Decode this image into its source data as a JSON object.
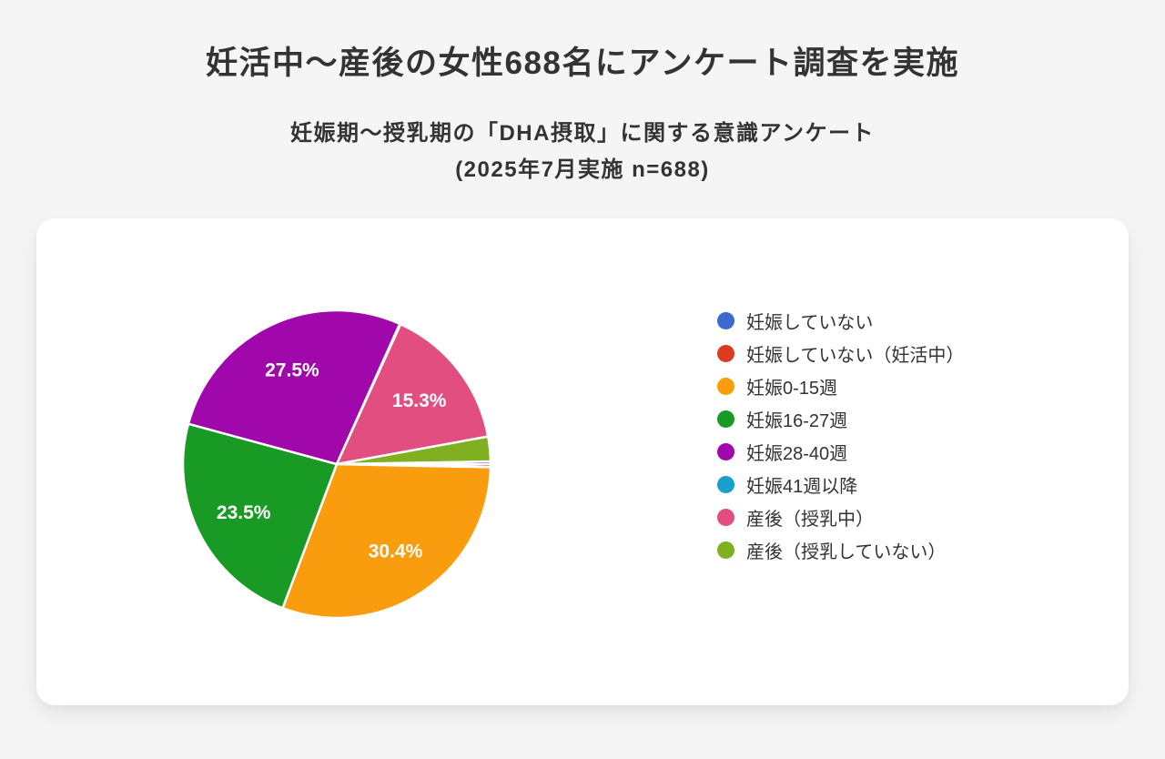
{
  "header": {
    "title": "妊活中〜産後の女性688名にアンケート調査を実施",
    "subtitle_line1": "妊娠期〜授乳期の「DHA摂取」に関する意識アンケート",
    "subtitle_line2": "(2025年7月実施 n=688)"
  },
  "colors": {
    "page_background": "#f5f5f6",
    "card_background": "#ffffff",
    "text": "#333333",
    "slice_label_text": "#ffffff",
    "slice_border": "#ffffff"
  },
  "chart_data": {
    "type": "pie",
    "title": "",
    "sample_size": 688,
    "legend_position": "right",
    "direction": "clockwise",
    "start_angle_deg": 89,
    "label_radius_ratio": 0.68,
    "slices": [
      {
        "label": "妊娠していない",
        "value": 0.3,
        "display_label": "",
        "color": "#3a69d0"
      },
      {
        "label": "妊娠していない（妊活中）",
        "value": 0.3,
        "display_label": "",
        "color": "#da3b21"
      },
      {
        "label": "妊娠0-15週",
        "value": 30.4,
        "display_label": "30.4%",
        "color": "#f99d0e"
      },
      {
        "label": "妊娠16-27週",
        "value": 23.5,
        "display_label": "23.5%",
        "color": "#189a25"
      },
      {
        "label": "妊娠28-40週",
        "value": 27.5,
        "display_label": "27.5%",
        "color": "#a008ac"
      },
      {
        "label": "妊娠41週以降",
        "value": 0.1,
        "display_label": "",
        "color": "#189fcb"
      },
      {
        "label": "産後（授乳中）",
        "value": 15.3,
        "display_label": "15.3%",
        "color": "#e24e80"
      },
      {
        "label": "産後（授乳していない）",
        "value": 2.6,
        "display_label": "",
        "color": "#80af21"
      }
    ]
  }
}
